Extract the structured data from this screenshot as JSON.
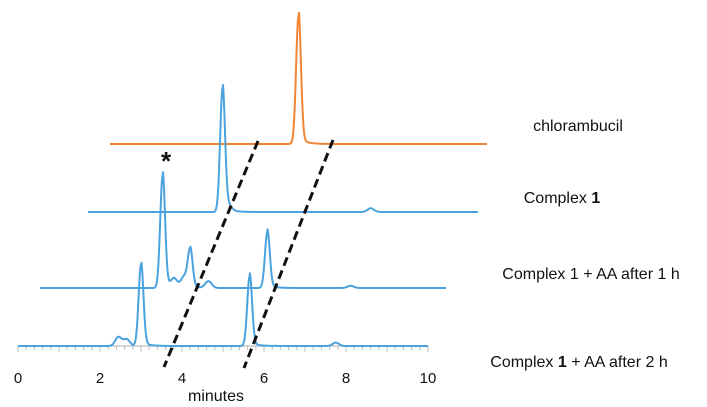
{
  "chart_data": {
    "type": "line",
    "title": "",
    "xlabel": "minutes",
    "ylabel": "",
    "xlim": [
      0,
      10
    ],
    "x_ticks": [
      "0",
      "2",
      "4",
      "6",
      "8",
      "10"
    ],
    "grid": false,
    "legend": "none",
    "annotation": "*",
    "series": [
      {
        "name": "chlorambucil",
        "name_html": "chlorambucil",
        "color": "#f28534",
        "peaks": [
          {
            "x": 5.0,
            "height": 1.0
          }
        ]
      },
      {
        "name": "Complex 1",
        "name_html": "Complex <b>1</b>",
        "color": "#4aa3df",
        "peaks": [
          {
            "x": 3.45,
            "height": 0.97
          },
          {
            "x": 3.6,
            "height": 0.04
          },
          {
            "x": 7.25,
            "height": 0.03
          }
        ]
      },
      {
        "name": "Complex 1 + AA after 1 h",
        "name_html": "Complex 1 + AA after 1 h",
        "color": "#4aa3df",
        "peaks": [
          {
            "x": 3.02,
            "height": 1.0
          },
          {
            "x": 3.7,
            "height": 0.34
          },
          {
            "x": 3.55,
            "height": 0.1
          },
          {
            "x": 3.3,
            "height": 0.08
          },
          {
            "x": 4.15,
            "height": 0.06
          },
          {
            "x": 5.6,
            "height": 0.5
          },
          {
            "x": 7.65,
            "height": 0.02
          }
        ]
      },
      {
        "name": "Complex 1 + AA after 2 h",
        "name_html": "Complex <b>1</b> + AA after 2 h",
        "color": "#4aa3df",
        "peaks": [
          {
            "x": 3.0,
            "height": 0.72
          },
          {
            "x": 2.45,
            "height": 0.08
          },
          {
            "x": 2.65,
            "height": 0.06
          },
          {
            "x": 5.65,
            "height": 0.62
          },
          {
            "x": 7.75,
            "height": 0.03
          }
        ]
      }
    ]
  }
}
